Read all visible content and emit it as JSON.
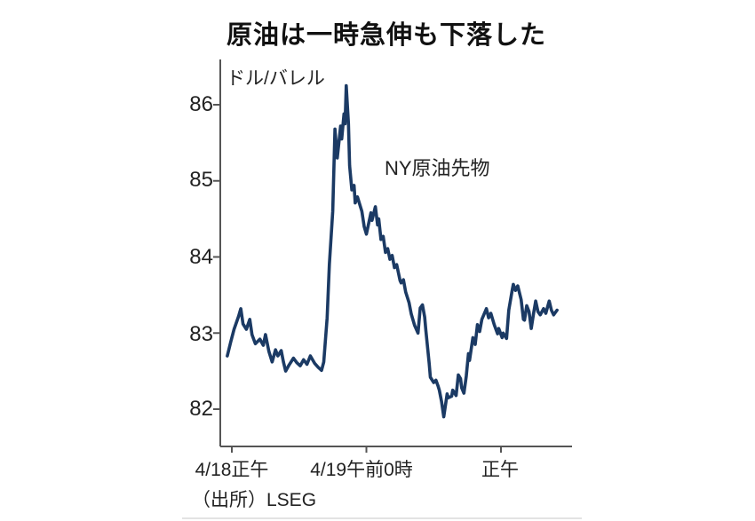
{
  "title": "原油は一時急伸も下落した",
  "source": "（出所）LSEG",
  "chart_data": {
    "type": "line",
    "title": "原油は一時急伸も下落した",
    "series_label": "NY原油先物",
    "unit_label": "ドル/バレル",
    "ylabel": "ドル/バレル",
    "y_ticks": [
      86,
      85,
      84,
      83,
      82
    ],
    "ylim": [
      81.7,
      86.6
    ],
    "x_tick_labels": [
      "4/18正午",
      "4/19午前0時",
      "正午"
    ],
    "x_tick_hours": [
      0,
      12,
      24
    ],
    "x_unit": "hours_since_4/18_noon",
    "grid": false,
    "legend_position": "annotation-inside-plot",
    "line_color": "#1b3a64",
    "axis_color": "#555555",
    "points": [
      [
        -0.4,
        82.7
      ],
      [
        -0.1,
        82.88
      ],
      [
        0.2,
        83.05
      ],
      [
        0.6,
        83.22
      ],
      [
        0.8,
        83.32
      ],
      [
        1.0,
        83.12
      ],
      [
        1.3,
        83.05
      ],
      [
        1.6,
        83.18
      ],
      [
        1.8,
        82.98
      ],
      [
        2.1,
        82.86
      ],
      [
        2.5,
        82.92
      ],
      [
        2.8,
        82.84
      ],
      [
        3.0,
        82.98
      ],
      [
        3.3,
        82.76
      ],
      [
        3.6,
        82.62
      ],
      [
        3.9,
        82.78
      ],
      [
        4.1,
        82.7
      ],
      [
        4.4,
        82.77
      ],
      [
        4.6,
        82.62
      ],
      [
        4.8,
        82.5
      ],
      [
        5.1,
        82.58
      ],
      [
        5.5,
        82.67
      ],
      [
        5.8,
        82.61
      ],
      [
        6.1,
        82.57
      ],
      [
        6.4,
        82.65
      ],
      [
        6.7,
        82.59
      ],
      [
        7.0,
        82.7
      ],
      [
        7.4,
        82.6
      ],
      [
        7.7,
        82.55
      ],
      [
        8.0,
        82.51
      ],
      [
        8.2,
        82.62
      ],
      [
        8.5,
        83.2
      ],
      [
        8.7,
        83.9
      ],
      [
        9.0,
        84.6
      ],
      [
        9.2,
        85.68
      ],
      [
        9.4,
        85.3
      ],
      [
        9.7,
        85.72
      ],
      [
        9.8,
        85.55
      ],
      [
        10.0,
        85.88
      ],
      [
        10.1,
        85.75
      ],
      [
        10.2,
        86.25
      ],
      [
        10.4,
        85.75
      ],
      [
        10.5,
        85.2
      ],
      [
        10.7,
        84.88
      ],
      [
        10.9,
        84.94
      ],
      [
        11.0,
        84.71
      ],
      [
        11.2,
        84.79
      ],
      [
        11.6,
        84.6
      ],
      [
        11.8,
        84.4
      ],
      [
        12.0,
        84.3
      ],
      [
        12.4,
        84.58
      ],
      [
        12.5,
        84.48
      ],
      [
        12.8,
        84.66
      ],
      [
        13.0,
        84.42
      ],
      [
        13.1,
        84.5
      ],
      [
        13.3,
        84.23
      ],
      [
        13.5,
        84.27
      ],
      [
        13.7,
        84.06
      ],
      [
        13.9,
        84.11
      ],
      [
        14.1,
        83.97
      ],
      [
        14.3,
        84.02
      ],
      [
        14.5,
        83.86
      ],
      [
        14.7,
        83.9
      ],
      [
        15.0,
        83.69
      ],
      [
        15.1,
        83.66
      ],
      [
        15.3,
        83.7
      ],
      [
        15.5,
        83.54
      ],
      [
        15.8,
        83.4
      ],
      [
        16.0,
        83.25
      ],
      [
        16.3,
        83.1
      ],
      [
        16.6,
        83.0
      ],
      [
        16.8,
        83.33
      ],
      [
        17.0,
        83.37
      ],
      [
        17.2,
        83.21
      ],
      [
        17.3,
        83.04
      ],
      [
        17.6,
        82.6
      ],
      [
        17.7,
        82.42
      ],
      [
        18.0,
        82.35
      ],
      [
        18.2,
        82.38
      ],
      [
        18.4,
        82.3
      ],
      [
        18.5,
        82.25
      ],
      [
        18.7,
        82.1
      ],
      [
        18.9,
        81.9
      ],
      [
        19.2,
        82.2
      ],
      [
        19.3,
        82.15
      ],
      [
        19.6,
        82.17
      ],
      [
        19.7,
        82.25
      ],
      [
        20.0,
        82.18
      ],
      [
        20.2,
        82.45
      ],
      [
        20.4,
        82.4
      ],
      [
        20.5,
        82.28
      ],
      [
        20.7,
        82.21
      ],
      [
        20.9,
        82.43
      ],
      [
        21.1,
        82.73
      ],
      [
        21.2,
        82.64
      ],
      [
        21.5,
        82.94
      ],
      [
        21.7,
        82.85
      ],
      [
        21.9,
        83.11
      ],
      [
        22.1,
        83.02
      ],
      [
        22.3,
        83.18
      ],
      [
        22.7,
        83.32
      ],
      [
        22.9,
        83.2
      ],
      [
        23.1,
        83.26
      ],
      [
        23.4,
        83.11
      ],
      [
        23.7,
        82.99
      ],
      [
        23.8,
        83.06
      ],
      [
        24.1,
        82.94
      ],
      [
        24.2,
        83.0
      ],
      [
        24.5,
        82.93
      ],
      [
        24.7,
        83.3
      ],
      [
        25.0,
        83.56
      ],
      [
        25.1,
        83.64
      ],
      [
        25.3,
        83.56
      ],
      [
        25.5,
        83.62
      ],
      [
        25.8,
        83.44
      ],
      [
        26.0,
        83.18
      ],
      [
        26.1,
        83.17
      ],
      [
        26.3,
        83.36
      ],
      [
        26.5,
        83.28
      ],
      [
        26.7,
        83.06
      ],
      [
        26.9,
        83.25
      ],
      [
        27.1,
        83.42
      ],
      [
        27.3,
        83.28
      ],
      [
        27.5,
        83.24
      ],
      [
        27.8,
        83.32
      ],
      [
        28.0,
        83.26
      ],
      [
        28.3,
        83.42
      ],
      [
        28.5,
        83.3
      ],
      [
        28.7,
        83.24
      ],
      [
        29.0,
        83.3
      ]
    ]
  }
}
